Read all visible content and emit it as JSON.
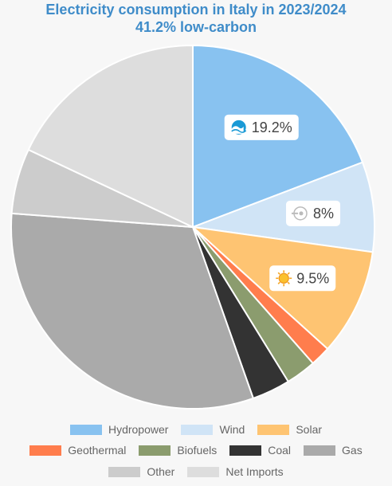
{
  "chart_data": {
    "type": "pie",
    "title": "Electricity consumption in Italy in 2023/2024",
    "subtitle": "41.2% low-carbon",
    "slices": [
      {
        "name": "Hydropower",
        "value": 19.2,
        "color": "#88c2f0",
        "label": "19.2%",
        "icon": "water-wave-icon"
      },
      {
        "name": "Wind",
        "value": 8.0,
        "color": "#d0e4f6",
        "label": "8%",
        "icon": "wind-turbine-icon"
      },
      {
        "name": "Solar",
        "value": 9.5,
        "color": "#fec472",
        "label": "9.5%",
        "icon": "sun-icon"
      },
      {
        "name": "Geothermal",
        "value": 1.8,
        "color": "#ff7d4d",
        "label": null,
        "icon": null
      },
      {
        "name": "Biofuels",
        "value": 2.7,
        "color": "#8b9c6e",
        "label": null,
        "icon": null
      },
      {
        "name": "Coal",
        "value": 3.4,
        "color": "#333333",
        "label": null,
        "icon": null
      },
      {
        "name": "Gas",
        "value": 31.6,
        "color": "#aaaaaa",
        "label": null,
        "icon": null
      },
      {
        "name": "Other",
        "value": 5.8,
        "color": "#cccccc",
        "label": null,
        "icon": null
      },
      {
        "name": "Net Imports",
        "value": 18.0,
        "color": "#dddddd",
        "label": null,
        "icon": null
      }
    ],
    "legend_position": "bottom",
    "legend_rows": [
      [
        "Hydropower",
        "Wind",
        "Solar"
      ],
      [
        "Geothermal",
        "Biofuels",
        "Coal",
        "Gas"
      ],
      [
        "Other",
        "Net Imports"
      ]
    ]
  }
}
